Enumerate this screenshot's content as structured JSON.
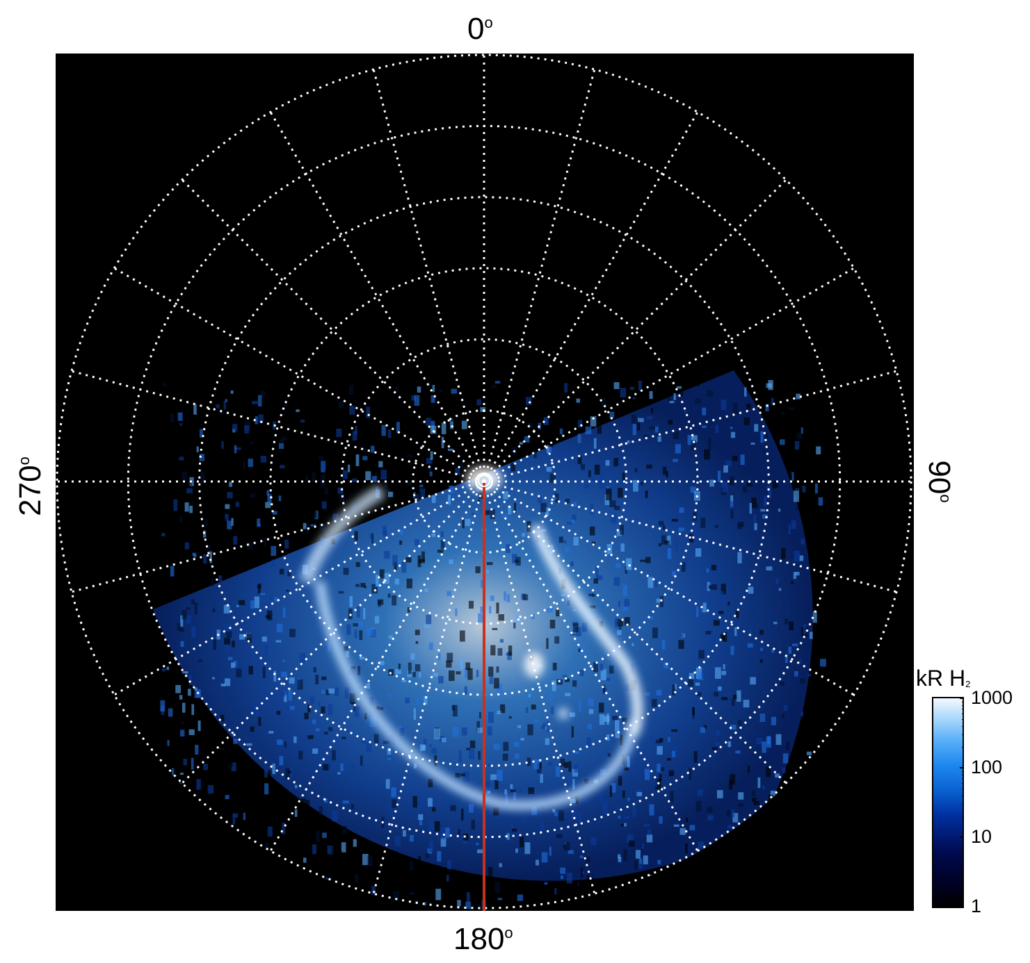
{
  "axis_labels": {
    "top": "0",
    "bottom": "180",
    "left": "270",
    "right": "90",
    "degree_symbol": "o"
  },
  "colorbar": {
    "title_main": "kR H",
    "title_sub": "2",
    "ticks": [
      "1000",
      "100",
      "10",
      "1"
    ],
    "scale": "log",
    "range": [
      1,
      1000
    ]
  },
  "colors": {
    "background": "#000000",
    "grid": "#ffffff",
    "meridian_line": "#c8311c",
    "aurora_bright": "#e8f4ff",
    "aurora_mid": "#2f8ef2",
    "aurora_dim": "#0a3a9a"
  },
  "grid": {
    "style": "dotted",
    "longitude_spacing_deg": 15,
    "latitude_rings": 6
  }
}
